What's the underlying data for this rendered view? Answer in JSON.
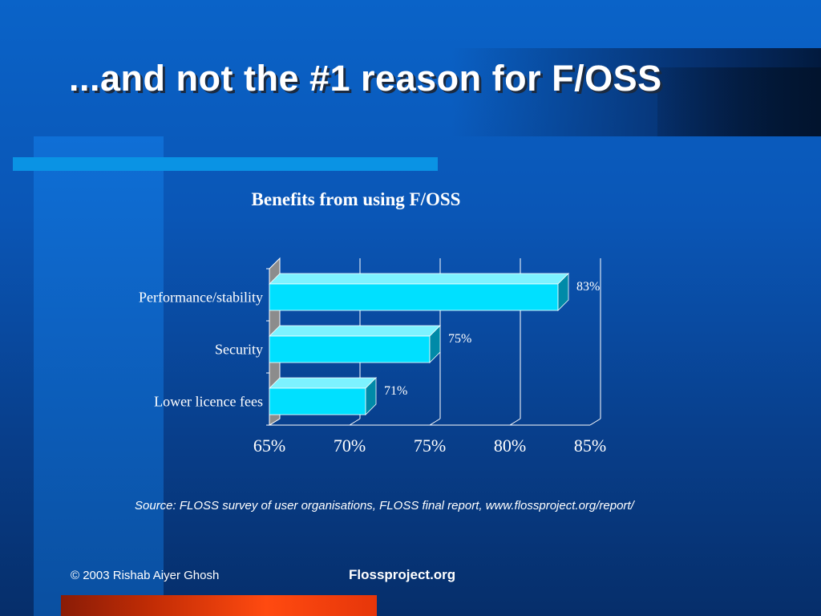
{
  "slide": {
    "title": "...and not the #1 reason for F/OSS",
    "source": "Source: FLOSS survey of user organisations, FLOSS final report, www.flossproject.org/report/",
    "copyright": "© 2003 Rishab Aiyer Ghosh",
    "site": "Flossproject.org"
  },
  "colors": {
    "background": "#0a56b6",
    "accent_bar": "#0a93e4",
    "bar_face": "#00e0ff",
    "bar_side": "#008aa8",
    "bottom_bar": "#ff4a10"
  },
  "chart_data": {
    "type": "bar",
    "orientation": "horizontal",
    "style": "3d",
    "title": "Benefits from using F/OSS",
    "categories": [
      "Performance/stability",
      "Security",
      "Lower licence fees"
    ],
    "values": [
      83,
      75,
      71
    ],
    "data_labels": [
      "83%",
      "75%",
      "71%"
    ],
    "xlim": [
      65,
      85
    ],
    "xticks": [
      65,
      70,
      75,
      80,
      85
    ],
    "xtick_labels": [
      "65%",
      "70%",
      "75%",
      "80%",
      "85%"
    ],
    "grid": true,
    "legend": "none"
  }
}
